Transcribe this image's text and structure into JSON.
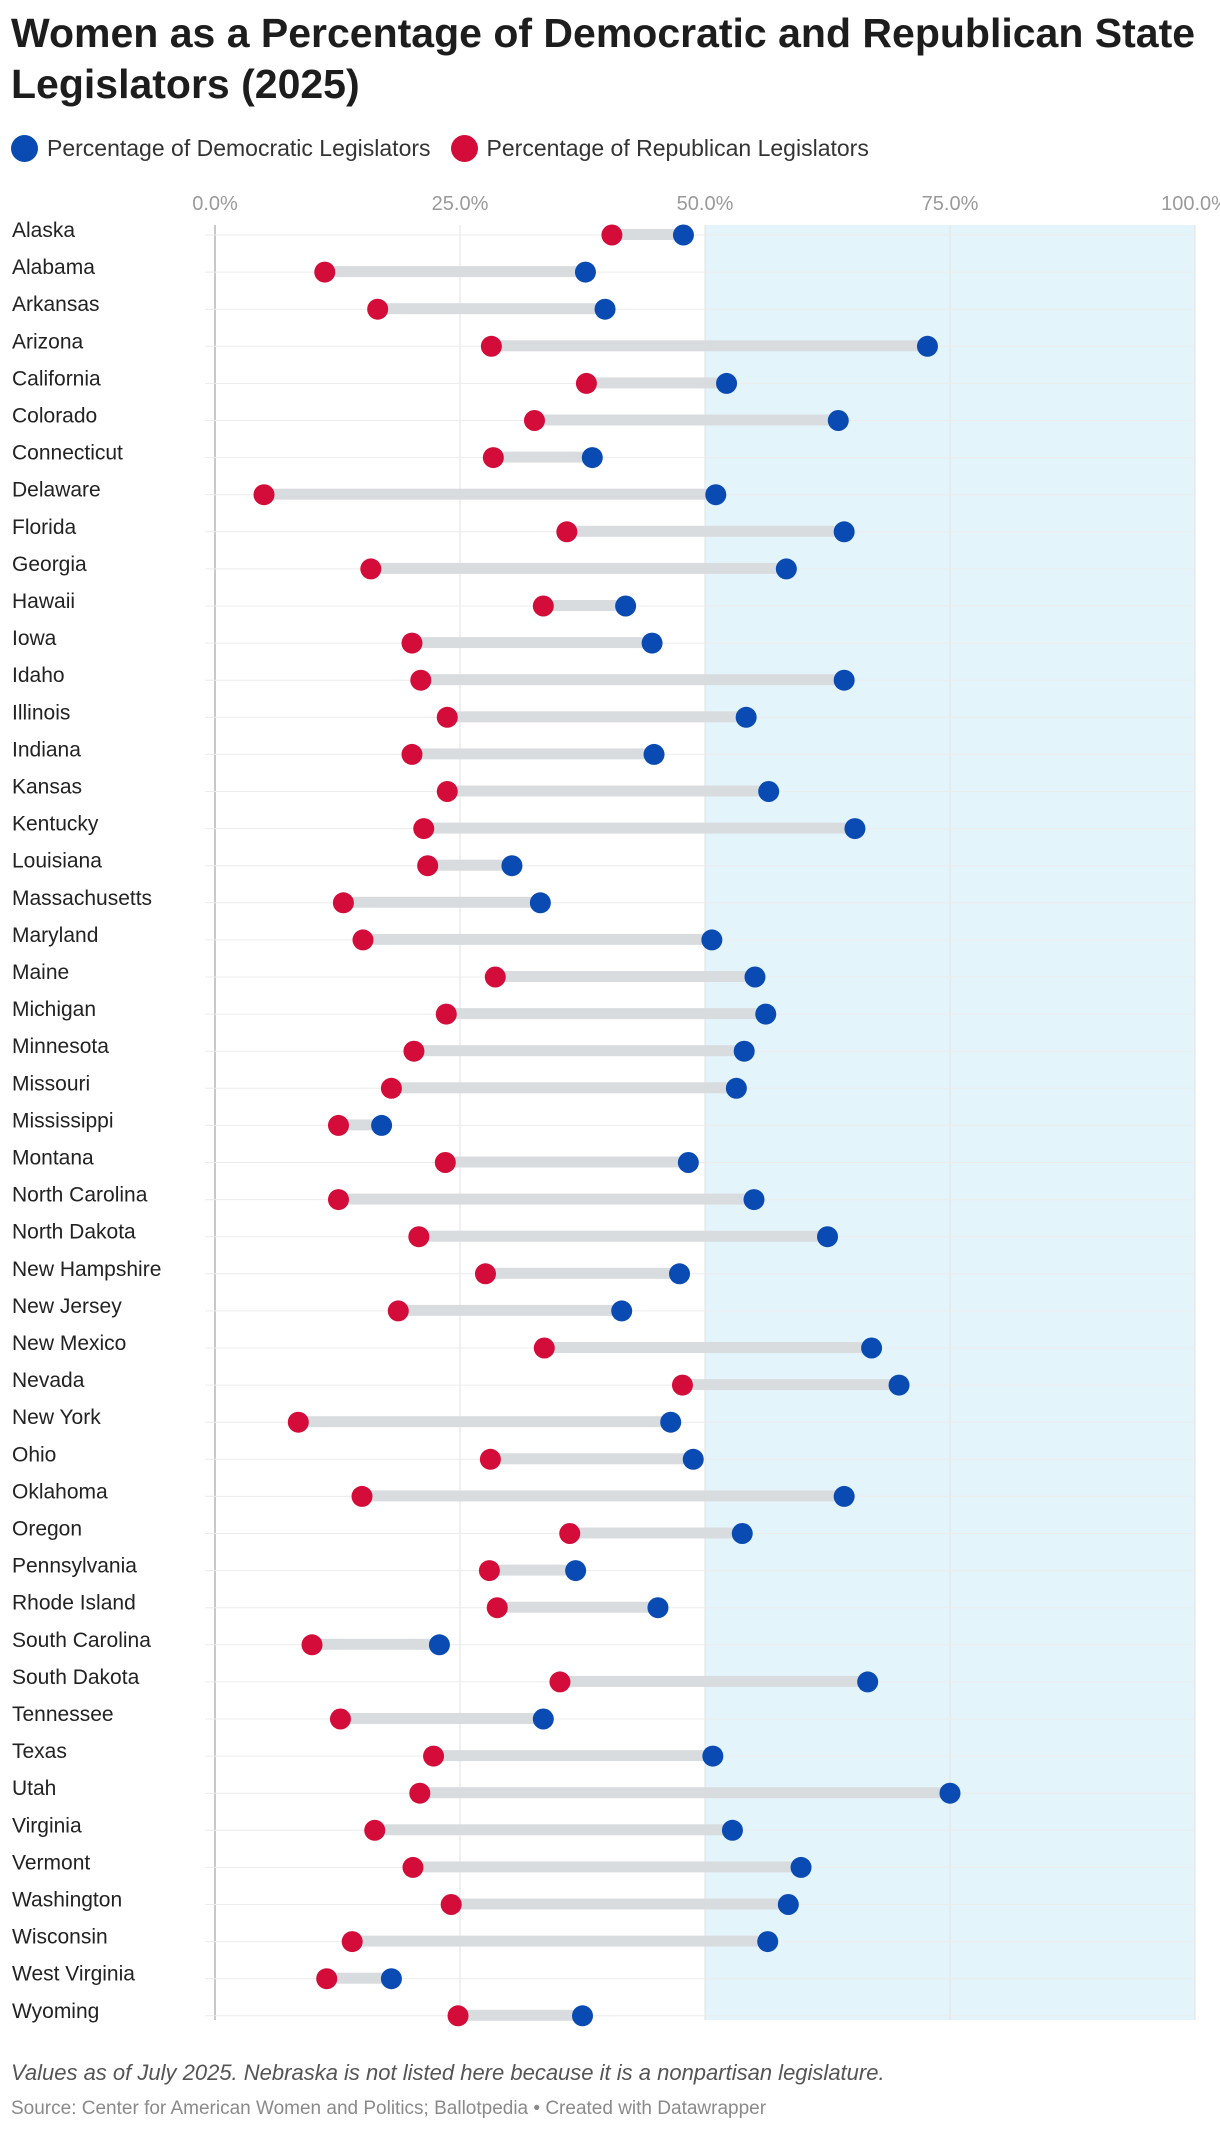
{
  "title": "Women as a Percentage of Democratic and Republican State Legislators (2025)",
  "legend": {
    "democratic": {
      "label": "Percentage of Democratic Legislators",
      "color": "#0a4bb3"
    },
    "republican": {
      "label": "Percentage of Republican Legislators",
      "color": "#d40c3a"
    }
  },
  "note": "Values as of July 2025. Nebraska is not listed here because it is a nonpartisan legislature.",
  "source": "Source: Center for American Women and Politics; Ballotpedia • Created with Datawrapper",
  "colors": {
    "highlight_band": "#e4f4fb",
    "connector": "#d9dcdf",
    "grid": "#e2e2e2",
    "axis_label": "#9a9a9a"
  },
  "chart_data": {
    "type": "dot",
    "x_range": [
      0,
      100
    ],
    "x_ticks": [
      0,
      25,
      50,
      75,
      100
    ],
    "x_tick_labels": [
      "0.0%",
      "25.0%",
      "50.0%",
      "75.0%",
      "100.0%"
    ],
    "highlight_range": [
      50,
      100
    ],
    "categories": [
      "Alaska",
      "Alabama",
      "Arkansas",
      "Arizona",
      "California",
      "Colorado",
      "Connecticut",
      "Delaware",
      "Florida",
      "Georgia",
      "Hawaii",
      "Iowa",
      "Idaho",
      "Illinois",
      "Indiana",
      "Kansas",
      "Kentucky",
      "Louisiana",
      "Massachusetts",
      "Maryland",
      "Maine",
      "Michigan",
      "Minnesota",
      "Missouri",
      "Mississippi",
      "Montana",
      "North Carolina",
      "North Dakota",
      "New Hampshire",
      "New Jersey",
      "New Mexico",
      "Nevada",
      "New York",
      "Ohio",
      "Oklahoma",
      "Oregon",
      "Pennsylvania",
      "Rhode Island",
      "South Carolina",
      "South Dakota",
      "Tennessee",
      "Texas",
      "Utah",
      "Virginia",
      "Vermont",
      "Washington",
      "Wisconsin",
      "West Virginia",
      "Wyoming"
    ],
    "series": [
      {
        "name": "Percentage of Democratic Legislators",
        "values": [
          47.8,
          37.8,
          39.8,
          72.7,
          52.2,
          63.6,
          38.5,
          51.1,
          64.2,
          58.3,
          41.9,
          44.6,
          64.2,
          54.2,
          44.8,
          56.5,
          65.3,
          30.3,
          33.2,
          50.7,
          55.1,
          56.2,
          54.0,
          53.2,
          17.0,
          48.3,
          55.0,
          62.5,
          47.4,
          41.5,
          67.0,
          69.8,
          46.5,
          48.8,
          64.2,
          53.8,
          36.8,
          45.2,
          22.9,
          66.6,
          33.5,
          50.8,
          75.0,
          52.8,
          59.8,
          58.5,
          56.4,
          18.0,
          37.5
        ]
      },
      {
        "name": "Percentage of Republican Legislators",
        "values": [
          40.5,
          11.2,
          16.6,
          28.2,
          37.9,
          32.6,
          28.4,
          5.0,
          35.9,
          15.9,
          33.5,
          20.1,
          21.0,
          23.7,
          20.1,
          23.7,
          21.3,
          21.7,
          13.1,
          15.1,
          28.6,
          23.6,
          20.3,
          18.0,
          12.6,
          23.5,
          12.6,
          20.8,
          27.6,
          18.7,
          33.6,
          47.7,
          8.5,
          28.1,
          15.0,
          36.2,
          28.0,
          28.8,
          9.9,
          35.2,
          12.8,
          22.3,
          20.9,
          16.3,
          20.2,
          24.1,
          14.0,
          11.4,
          24.8
        ]
      }
    ]
  }
}
